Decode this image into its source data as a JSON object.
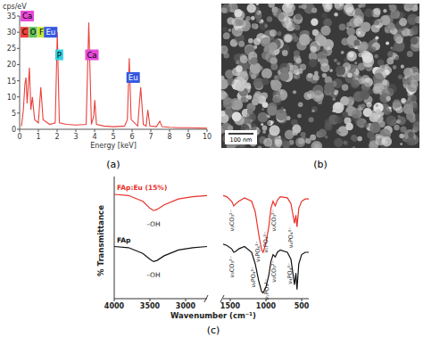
{
  "chart_data": [
    {
      "type": "line",
      "panel": "(a)",
      "ylabel": "cps/eV",
      "xlabel": "Energy [keV]",
      "color": "#e8413c",
      "x": [
        0.1,
        0.2,
        0.28,
        0.34,
        0.4,
        0.52,
        0.6,
        0.68,
        0.8,
        1.0,
        1.13,
        1.25,
        1.6,
        1.9,
        2.01,
        2.12,
        2.5,
        3.0,
        3.55,
        3.69,
        3.83,
        3.95,
        4.01,
        4.1,
        4.5,
        5.0,
        5.6,
        5.75,
        5.85,
        5.95,
        6.3,
        6.46,
        6.6,
        6.75,
        6.84,
        6.95,
        7.3,
        7.48,
        7.6,
        8.0,
        8.5,
        9.0,
        9.5,
        10.0
      ],
      "values": [
        1,
        6,
        14,
        16,
        8,
        19,
        6,
        10,
        3,
        2,
        13,
        3,
        1.5,
        2,
        30,
        2,
        1.5,
        1.3,
        1.5,
        33,
        1.5,
        4,
        9,
        1.5,
        1,
        0.8,
        1,
        3,
        22,
        3,
        1,
        13,
        1.5,
        1,
        6,
        1,
        0.8,
        2.5,
        0.8,
        0.6,
        0.5,
        0.5,
        0.4,
        0.3
      ],
      "xlim": [
        0,
        10
      ],
      "xticks": [
        0,
        1,
        2,
        3,
        4,
        5,
        6,
        7,
        8,
        9,
        10
      ],
      "ylim": [
        0,
        35
      ],
      "yticks": [
        0,
        5,
        10,
        15,
        20,
        25,
        30,
        35
      ],
      "annotations": [
        {
          "text": "Ca",
          "x": 0.05,
          "y": 35,
          "color": "#e84ad8"
        },
        {
          "text": "C",
          "x": 0.05,
          "y": 30,
          "color": "#f0403a"
        },
        {
          "text": "O",
          "x": 0.5,
          "y": 30,
          "color": "#5fc35a"
        },
        {
          "text": "F",
          "x": 0.95,
          "y": 30,
          "color": "#c8e83c"
        },
        {
          "text": "Eu",
          "x": 1.3,
          "y": 30,
          "color": "#3558e0"
        },
        {
          "text": "P",
          "x": 1.9,
          "y": 23,
          "color": "#33d0e0"
        },
        {
          "text": "Ca",
          "x": 3.5,
          "y": 23,
          "color": "#e84ad8"
        },
        {
          "text": "Eu",
          "x": 5.7,
          "y": 16,
          "color": "#3558e0"
        }
      ]
    },
    {
      "type": "line",
      "panel": "(c)",
      "xlabel": "Wavenumber (cm⁻¹)",
      "ylabel": "% Transmittance",
      "tick_labels": "x",
      "xlim": [
        4000,
        2700
      ],
      "xticks": [
        4000,
        3500,
        3000
      ],
      "ylim": [
        0,
        100
      ],
      "x": [
        4000,
        3800,
        3600,
        3500,
        3450,
        3400,
        3300,
        3100,
        2900,
        2700
      ],
      "series": [
        {
          "name": "FAp:Eu (15%)",
          "color": "#e8312a",
          "values": [
            90,
            89,
            84,
            78,
            76,
            77,
            81,
            86,
            88,
            89
          ]
        },
        {
          "name": "FAp",
          "color": "#111111",
          "values": [
            45,
            44,
            39,
            34,
            32,
            33,
            37,
            42,
            44,
            45
          ]
        }
      ],
      "annotations": [
        {
          "text": "–OH",
          "x": 3450,
          "y": 68,
          "color": "#222222"
        },
        {
          "text": "–OH",
          "x": 3450,
          "y": 24,
          "color": "#222222"
        }
      ]
    },
    {
      "type": "line",
      "tick_labels": "x",
      "xlim": [
        1600,
        400
      ],
      "xticks": [
        1500,
        1000,
        500
      ],
      "ylim": [
        0,
        100
      ],
      "x": [
        1600,
        1550,
        1480,
        1450,
        1420,
        1380,
        1300,
        1200,
        1150,
        1100,
        1060,
        1040,
        1000,
        960,
        930,
        900,
        870,
        840,
        800,
        700,
        650,
        600,
        580,
        565,
        540,
        500,
        450,
        400
      ],
      "series": [
        {
          "color": "#e8312a",
          "values": [
            89,
            88,
            84,
            80,
            82,
            84,
            87,
            84,
            75,
            55,
            42,
            40,
            48,
            62,
            78,
            84,
            80,
            85,
            88,
            87,
            82,
            65,
            72,
            62,
            78,
            84,
            86,
            86
          ]
        },
        {
          "color": "#111111",
          "values": [
            47,
            46,
            43,
            40,
            41,
            43,
            45,
            40,
            30,
            15,
            6,
            5,
            10,
            20,
            32,
            38,
            36,
            40,
            42,
            40,
            34,
            12,
            22,
            8,
            30,
            38,
            40,
            40
          ]
        }
      ],
      "annotations": [
        {
          "text": "ν₃CO₃²⁻",
          "x": 1450,
          "y": 77,
          "color": "#222222"
        },
        {
          "text": "ν₃PO₄³⁻",
          "x": 1090,
          "y": 50,
          "color": "#222222"
        },
        {
          "text": "ν₁PO₄³⁻",
          "x": 975,
          "y": 58,
          "color": "#222222"
        },
        {
          "text": "ν₂CO₃²⁻",
          "x": 860,
          "y": 77,
          "color": "#222222"
        },
        {
          "text": "ν₄PO₄³⁻",
          "x": 620,
          "y": 62,
          "color": "#222222"
        },
        {
          "text": "ν₃CO₃²⁻",
          "x": 1450,
          "y": 37,
          "color": "#222222"
        },
        {
          "text": "ν₃PO₄³⁻",
          "x": 1150,
          "y": 28,
          "color": "#222222"
        },
        {
          "text": "ν₁PO₄³⁻",
          "x": 960,
          "y": 17,
          "color": "#222222"
        },
        {
          "text": "ν₂CO₃²⁻",
          "x": 860,
          "y": 33,
          "color": "#222222"
        },
        {
          "text": "ν₄PO₄³⁻",
          "x": 640,
          "y": 31,
          "color": "#222222"
        }
      ]
    }
  ],
  "image": {
    "panel": "(b)",
    "scale_bar": "100 nm"
  }
}
